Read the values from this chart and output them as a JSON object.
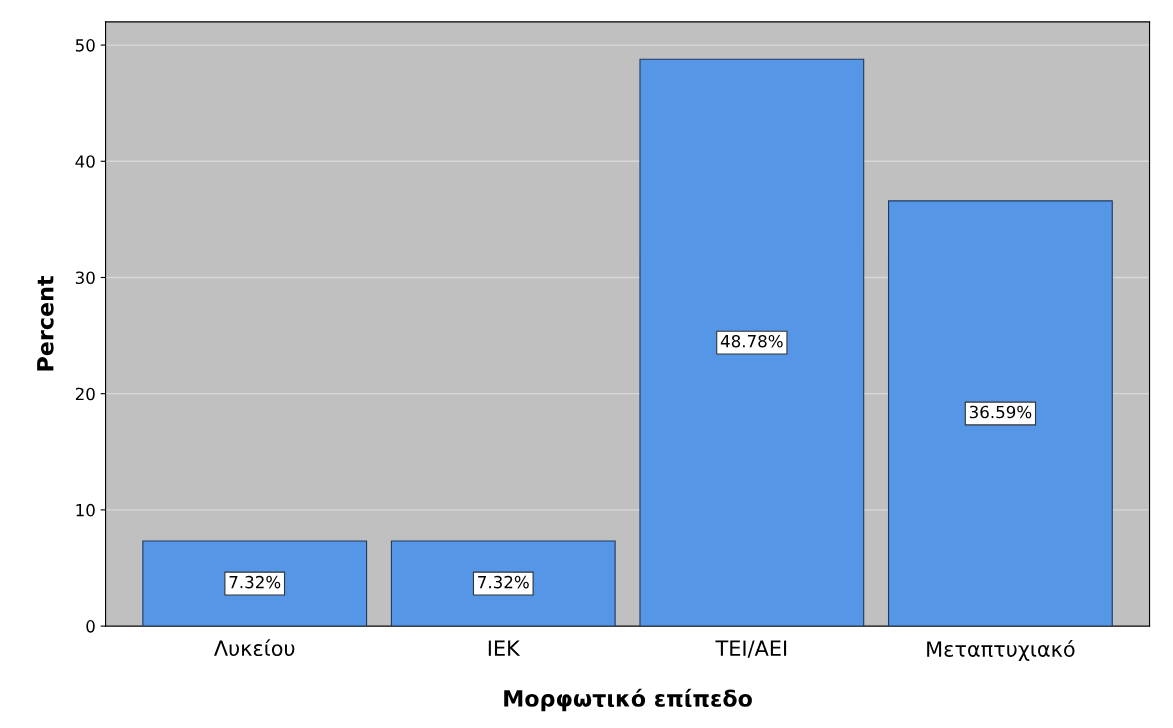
{
  "chart_data": {
    "type": "bar",
    "xlabel": "Μορφωτικό επίπεδο",
    "ylabel": "Percent",
    "categories": [
      "Λυκείου",
      "ΙΕΚ",
      "ΤΕΙ/ΑΕΙ",
      "Μεταπτυχιακό"
    ],
    "values": [
      7.32,
      7.32,
      48.78,
      36.59
    ],
    "value_labels": [
      "7.32%",
      "7.32%",
      "48.78%",
      "36.59%"
    ],
    "color": "#5596e6",
    "ylim": [
      0,
      52
    ],
    "yticks": [
      0,
      10,
      20,
      30,
      40,
      50
    ],
    "grid": "y"
  }
}
